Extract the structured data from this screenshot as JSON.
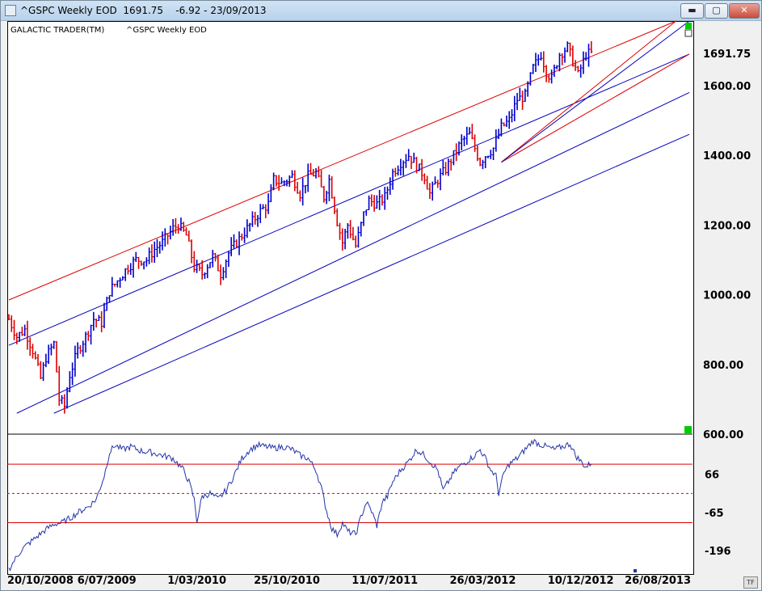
{
  "window": {
    "title": "^GSPC Weekly EOD  1691.75    -6.92 - 23/09/2013",
    "minimize_label": "▬",
    "maximize_label": "▢",
    "close_label": "✕"
  },
  "legend": {
    "product": "GALACTIC TRADER(TM)",
    "series": "^GSPC Weekly EOD"
  },
  "colors": {
    "up_bar": "#0000cc",
    "down_bar": "#dd0000",
    "channel_blue": "#0000bb",
    "channel_red": "#dd0000",
    "indicator_line": "#2233aa",
    "marker_green": "#00cc00"
  },
  "badge": "TF",
  "chart_data": [
    {
      "type": "bar",
      "subtype": "ohlc-weekly",
      "title": "^GSPC Weekly EOD",
      "last_value_label": "1691.75",
      "y_ticks": [
        "1600.00",
        "1400.00",
        "1200.00",
        "1000.00",
        "800.00",
        "600.00"
      ],
      "y_tick_values": [
        1600,
        1400,
        1200,
        1000,
        800,
        600
      ],
      "ylim": [
        600,
        1785
      ],
      "x_tick_labels": [
        "20/10/2008",
        "6/07/2009",
        "1/03/2010",
        "25/10/2010",
        "11/07/2011",
        "26/03/2012",
        "10/12/2012",
        "26/08/2013"
      ],
      "x_tick_weeks": [
        0,
        37,
        71,
        105,
        142,
        179,
        216,
        253
      ],
      "x_weeks": 257,
      "price_path": [
        [
          0,
          930
        ],
        [
          3,
          880
        ],
        [
          6,
          900
        ],
        [
          9,
          840
        ],
        [
          12,
          760
        ],
        [
          14,
          820
        ],
        [
          17,
          860
        ],
        [
          19,
          700
        ],
        [
          21,
          680
        ],
        [
          23,
          770
        ],
        [
          26,
          840
        ],
        [
          29,
          880
        ],
        [
          32,
          930
        ],
        [
          35,
          920
        ],
        [
          38,
          1010
        ],
        [
          42,
          1050
        ],
        [
          45,
          1080
        ],
        [
          48,
          1100
        ],
        [
          52,
          1100
        ],
        [
          55,
          1130
        ],
        [
          58,
          1150
        ],
        [
          62,
          1190
        ],
        [
          64,
          1200
        ],
        [
          67,
          1170
        ],
        [
          70,
          1080
        ],
        [
          73,
          1060
        ],
        [
          77,
          1110
        ],
        [
          80,
          1060
        ],
        [
          83,
          1120
        ],
        [
          86,
          1150
        ],
        [
          89,
          1180
        ],
        [
          92,
          1210
        ],
        [
          95,
          1240
        ],
        [
          98,
          1260
        ],
        [
          100,
          1330
        ],
        [
          103,
          1320
        ],
        [
          107,
          1340
        ],
        [
          110,
          1290
        ],
        [
          113,
          1340
        ],
        [
          116,
          1350
        ],
        [
          119,
          1280
        ],
        [
          121,
          1330
        ],
        [
          124,
          1210
        ],
        [
          126,
          1150
        ],
        [
          128,
          1200
        ],
        [
          131,
          1140
        ],
        [
          134,
          1230
        ],
        [
          136,
          1270
        ],
        [
          139,
          1260
        ],
        [
          142,
          1280
        ],
        [
          145,
          1350
        ],
        [
          148,
          1380
        ],
        [
          151,
          1400
        ],
        [
          154,
          1370
        ],
        [
          157,
          1340
        ],
        [
          159,
          1290
        ],
        [
          162,
          1330
        ],
        [
          165,
          1360
        ],
        [
          168,
          1400
        ],
        [
          171,
          1440
        ],
        [
          174,
          1460
        ],
        [
          176,
          1420
        ],
        [
          178,
          1380
        ],
        [
          180,
          1400
        ],
        [
          183,
          1420
        ],
        [
          186,
          1480
        ],
        [
          189,
          1500
        ],
        [
          192,
          1560
        ],
        [
          195,
          1570
        ],
        [
          198,
          1650
        ],
        [
          201,
          1690
        ],
        [
          203,
          1640
        ],
        [
          205,
          1620
        ],
        [
          208,
          1690
        ],
        [
          211,
          1710
        ],
        [
          213,
          1670
        ],
        [
          215,
          1630
        ],
        [
          218,
          1690
        ],
        [
          220,
          1692
        ]
      ],
      "lines": [
        {
          "name": "upper-red",
          "color": "red",
          "from": [
            0,
            985
          ],
          "to": [
            252,
            1785
          ]
        },
        {
          "name": "upper-blue",
          "color": "blue",
          "from": [
            0,
            855
          ],
          "to": [
            257,
            1690
          ]
        },
        {
          "name": "mid-blue",
          "color": "blue",
          "from": [
            3,
            660
          ],
          "to": [
            257,
            1580
          ]
        },
        {
          "name": "lower-blue",
          "color": "blue",
          "from": [
            17,
            660
          ],
          "to": [
            257,
            1460
          ]
        },
        {
          "name": "fan-red-1",
          "color": "red",
          "from": [
            186,
            1380
          ],
          "to": [
            252,
            1785
          ]
        },
        {
          "name": "fan-red-2",
          "color": "red",
          "from": [
            186,
            1380
          ],
          "to": [
            257,
            1690
          ]
        },
        {
          "name": "fan-blue-1",
          "color": "blue",
          "from": [
            186,
            1380
          ],
          "to": [
            257,
            1785
          ]
        }
      ]
    },
    {
      "type": "line",
      "title": "",
      "y_ticks": [
        "66",
        "-65",
        "-196"
      ],
      "y_tick_values": [
        66,
        -65,
        -196
      ],
      "ylim": [
        -270,
        200
      ],
      "reference_lines": [
        {
          "value": 100,
          "style": "solid",
          "color": "red"
        },
        {
          "value": 0,
          "style": "dashed",
          "color": "red"
        },
        {
          "value": -100,
          "style": "solid",
          "color": "red"
        }
      ],
      "x_weeks": 257,
      "values_path": [
        [
          0,
          -260
        ],
        [
          2,
          -230
        ],
        [
          5,
          -190
        ],
        [
          9,
          -160
        ],
        [
          13,
          -130
        ],
        [
          17,
          -105
        ],
        [
          20,
          -100
        ],
        [
          23,
          -85
        ],
        [
          27,
          -60
        ],
        [
          30,
          -45
        ],
        [
          33,
          -20
        ],
        [
          36,
          60
        ],
        [
          38,
          140
        ],
        [
          40,
          165
        ],
        [
          43,
          150
        ],
        [
          46,
          160
        ],
        [
          50,
          145
        ],
        [
          54,
          140
        ],
        [
          58,
          130
        ],
        [
          62,
          120
        ],
        [
          66,
          80
        ],
        [
          68,
          40
        ],
        [
          70,
          -20
        ],
        [
          71,
          -95
        ],
        [
          73,
          -10
        ],
        [
          76,
          0
        ],
        [
          79,
          -20
        ],
        [
          82,
          10
        ],
        [
          85,
          60
        ],
        [
          88,
          120
        ],
        [
          91,
          150
        ],
        [
          94,
          165
        ],
        [
          97,
          160
        ],
        [
          100,
          155
        ],
        [
          104,
          160
        ],
        [
          107,
          150
        ],
        [
          110,
          130
        ],
        [
          113,
          120
        ],
        [
          116,
          80
        ],
        [
          118,
          20
        ],
        [
          120,
          -60
        ],
        [
          122,
          -120
        ],
        [
          124,
          -140
        ],
        [
          126,
          -100
        ],
        [
          128,
          -130
        ],
        [
          131,
          -140
        ],
        [
          133,
          -80
        ],
        [
          135,
          -30
        ],
        [
          137,
          -60
        ],
        [
          139,
          -110
        ],
        [
          141,
          -30
        ],
        [
          143,
          -10
        ],
        [
          145,
          40
        ],
        [
          148,
          80
        ],
        [
          151,
          110
        ],
        [
          154,
          150
        ],
        [
          157,
          130
        ],
        [
          160,
          100
        ],
        [
          162,
          80
        ],
        [
          164,
          10
        ],
        [
          166,
          40
        ],
        [
          168,
          70
        ],
        [
          170,
          90
        ],
        [
          173,
          110
        ],
        [
          176,
          130
        ],
        [
          178,
          150
        ],
        [
          180,
          120
        ],
        [
          182,
          80
        ],
        [
          184,
          60
        ],
        [
          185,
          0
        ],
        [
          187,
          70
        ],
        [
          189,
          100
        ],
        [
          192,
          120
        ],
        [
          195,
          150
        ],
        [
          198,
          180
        ],
        [
          200,
          170
        ],
        [
          203,
          160
        ],
        [
          206,
          150
        ],
        [
          209,
          160
        ],
        [
          212,
          170
        ],
        [
          214,
          130
        ],
        [
          216,
          110
        ],
        [
          218,
          90
        ],
        [
          220,
          105
        ]
      ]
    }
  ]
}
